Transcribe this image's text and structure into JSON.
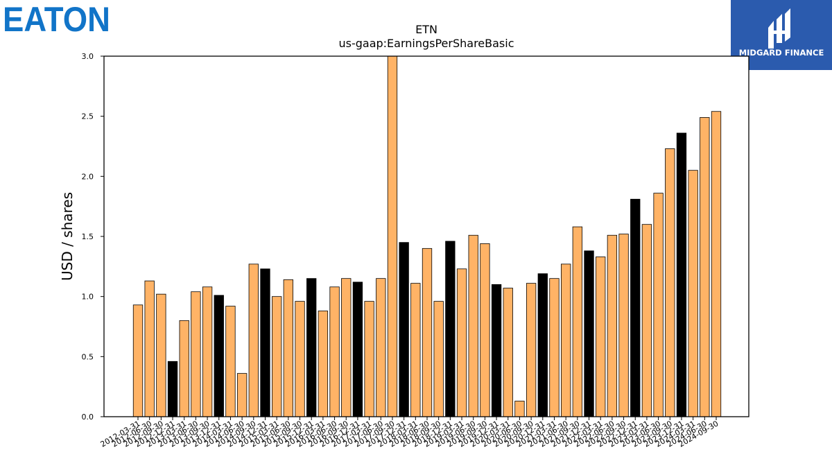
{
  "logos": {
    "left": {
      "text": "EATON",
      "color": "#1174c8"
    },
    "right": {
      "text": "MIDGARD FINANCE",
      "background": "#2b5bae",
      "text_color": "#ffffff"
    }
  },
  "chart_data": {
    "type": "bar",
    "title": "ETN",
    "subtitle": "us-gaap:EarningsPerShareBasic",
    "ylabel": "USD / shares",
    "xlabel": "",
    "ylim": [
      0,
      3.0
    ],
    "yticks": [
      "0.0",
      "0.5",
      "1.0",
      "1.5",
      "2.0",
      "2.5",
      "3.0"
    ],
    "grid": false,
    "colors": {
      "quarter": "#ffb366",
      "year_end": "#000000",
      "edge": "#000000"
    },
    "categories": [
      "2012-03-31",
      "2012-06-30",
      "2012-09-30",
      "2012-12-31",
      "2013-03-31",
      "2013-06-30",
      "2013-09-30",
      "2013-12-31",
      "2014-03-31",
      "2014-06-30",
      "2014-09-30",
      "2014-12-31",
      "2015-03-31",
      "2015-06-30",
      "2015-09-30",
      "2015-12-31",
      "2016-03-31",
      "2016-06-30",
      "2016-09-30",
      "2016-12-31",
      "2017-03-31",
      "2017-06-30",
      "2017-09-30",
      "2017-12-31",
      "2018-03-31",
      "2018-06-30",
      "2018-09-30",
      "2018-12-31",
      "2019-03-31",
      "2019-06-30",
      "2019-09-30",
      "2019-12-31",
      "2020-03-31",
      "2020-06-30",
      "2020-09-30",
      "2020-12-31",
      "2021-03-31",
      "2021-06-30",
      "2021-09-30",
      "2021-12-31",
      "2022-03-31",
      "2022-06-30",
      "2022-09-30",
      "2022-12-31",
      "2023-03-31",
      "2023-06-30",
      "2023-09-30",
      "2023-12-31",
      "2024-03-31",
      "2024-06-30",
      "2024-09-30"
    ],
    "values": [
      0.93,
      1.13,
      1.02,
      0.46,
      0.8,
      1.04,
      1.08,
      1.01,
      0.92,
      0.36,
      1.27,
      1.23,
      1.0,
      1.14,
      0.96,
      1.15,
      0.88,
      1.08,
      1.15,
      1.12,
      0.96,
      1.15,
      3.03,
      1.45,
      1.11,
      1.4,
      0.96,
      1.46,
      1.23,
      1.51,
      1.44,
      1.1,
      1.07,
      0.13,
      1.11,
      1.19,
      1.15,
      1.27,
      1.58,
      1.38,
      1.33,
      1.51,
      1.52,
      1.81,
      1.6,
      1.86,
      2.23,
      2.36,
      2.05,
      2.49,
      2.54
    ],
    "year_end_flags": [
      0,
      0,
      0,
      1,
      0,
      0,
      0,
      1,
      0,
      0,
      0,
      1,
      0,
      0,
      0,
      1,
      0,
      0,
      0,
      1,
      0,
      0,
      0,
      1,
      0,
      0,
      0,
      1,
      0,
      0,
      0,
      1,
      0,
      0,
      0,
      1,
      0,
      0,
      0,
      1,
      0,
      0,
      0,
      1,
      0,
      0,
      0,
      1,
      0,
      0,
      0
    ]
  }
}
